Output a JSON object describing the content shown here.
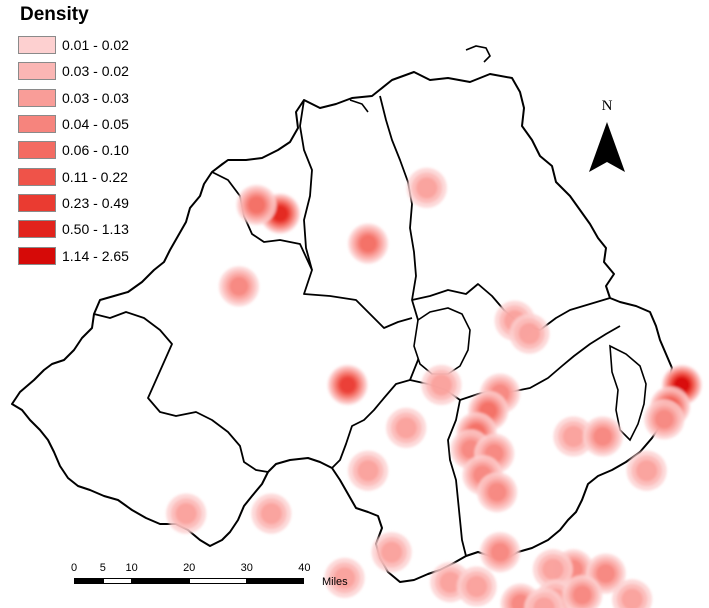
{
  "legend": {
    "title": "Density",
    "items": [
      {
        "label": "0.01 - 0.02",
        "color": "#fdd0d0"
      },
      {
        "label": "0.03 - 0.02",
        "color": "#fbb6b4"
      },
      {
        "label": "0.03 - 0.03",
        "color": "#f99d98"
      },
      {
        "label": "0.04 - 0.05",
        "color": "#f6847d"
      },
      {
        "label": "0.06 - 0.10",
        "color": "#f36b62"
      },
      {
        "label": "0.11 - 0.22",
        "color": "#ef5349"
      },
      {
        "label": "0.23 - 0.49",
        "color": "#ea3b31"
      },
      {
        "label": "0.50 - 1.13",
        "color": "#e2231c"
      },
      {
        "label": "1.14 - 2.65",
        "color": "#d60a08"
      }
    ]
  },
  "north_arrow": {
    "letter": "N"
  },
  "scale_bar": {
    "ticks": [
      "0",
      "5",
      "10",
      "20",
      "30",
      "40"
    ],
    "unit": "Miles"
  },
  "hotspots": [
    {
      "lon": -7.3,
      "lat": 55.0,
      "level": 8
    },
    {
      "lon": -7.38,
      "lat": 55.02,
      "level": 5
    },
    {
      "lon": -7.0,
      "lat": 54.93,
      "level": 5
    },
    {
      "lon": -6.8,
      "lat": 55.06,
      "level": 3
    },
    {
      "lon": -7.44,
      "lat": 54.83,
      "level": 4
    },
    {
      "lon": -7.07,
      "lat": 54.6,
      "level": 7
    },
    {
      "lon": -6.75,
      "lat": 54.6,
      "level": 3
    },
    {
      "lon": -6.5,
      "lat": 54.75,
      "level": 3
    },
    {
      "lon": -6.45,
      "lat": 54.72,
      "level": 3
    },
    {
      "lon": -5.93,
      "lat": 54.6,
      "level": 9
    },
    {
      "lon": -5.97,
      "lat": 54.55,
      "level": 6
    },
    {
      "lon": -5.99,
      "lat": 54.52,
      "level": 4
    },
    {
      "lon": -6.55,
      "lat": 54.58,
      "level": 4
    },
    {
      "lon": -6.59,
      "lat": 54.54,
      "level": 5
    },
    {
      "lon": -6.63,
      "lat": 54.49,
      "level": 5
    },
    {
      "lon": -6.65,
      "lat": 54.45,
      "level": 4
    },
    {
      "lon": -6.57,
      "lat": 54.44,
      "level": 4
    },
    {
      "lon": -6.87,
      "lat": 54.5,
      "level": 3
    },
    {
      "lon": -6.3,
      "lat": 54.48,
      "level": 3
    },
    {
      "lon": -6.2,
      "lat": 54.48,
      "level": 4
    },
    {
      "lon": -6.05,
      "lat": 54.4,
      "level": 3
    },
    {
      "lon": -6.61,
      "lat": 54.39,
      "level": 4
    },
    {
      "lon": -6.56,
      "lat": 54.35,
      "level": 4
    },
    {
      "lon": -7.0,
      "lat": 54.4,
      "level": 3
    },
    {
      "lon": -7.33,
      "lat": 54.3,
      "level": 3
    },
    {
      "lon": -7.62,
      "lat": 54.3,
      "level": 3
    },
    {
      "lon": -6.92,
      "lat": 54.21,
      "level": 3
    },
    {
      "lon": -6.55,
      "lat": 54.21,
      "level": 4
    },
    {
      "lon": -6.3,
      "lat": 54.17,
      "level": 4
    },
    {
      "lon": -6.37,
      "lat": 54.17,
      "level": 3
    },
    {
      "lon": -6.19,
      "lat": 54.16,
      "level": 4
    },
    {
      "lon": -6.1,
      "lat": 54.1,
      "level": 3
    },
    {
      "lon": -6.36,
      "lat": 54.1,
      "level": 3
    },
    {
      "lon": -6.48,
      "lat": 54.09,
      "level": 4
    },
    {
      "lon": -6.27,
      "lat": 54.11,
      "level": 4
    },
    {
      "lon": -6.72,
      "lat": 54.14,
      "level": 3
    },
    {
      "lon": -6.63,
      "lat": 54.13,
      "level": 3
    },
    {
      "lon": -6.4,
      "lat": 54.08,
      "level": 3
    },
    {
      "lon": -7.08,
      "lat": 54.15,
      "level": 3
    }
  ]
}
